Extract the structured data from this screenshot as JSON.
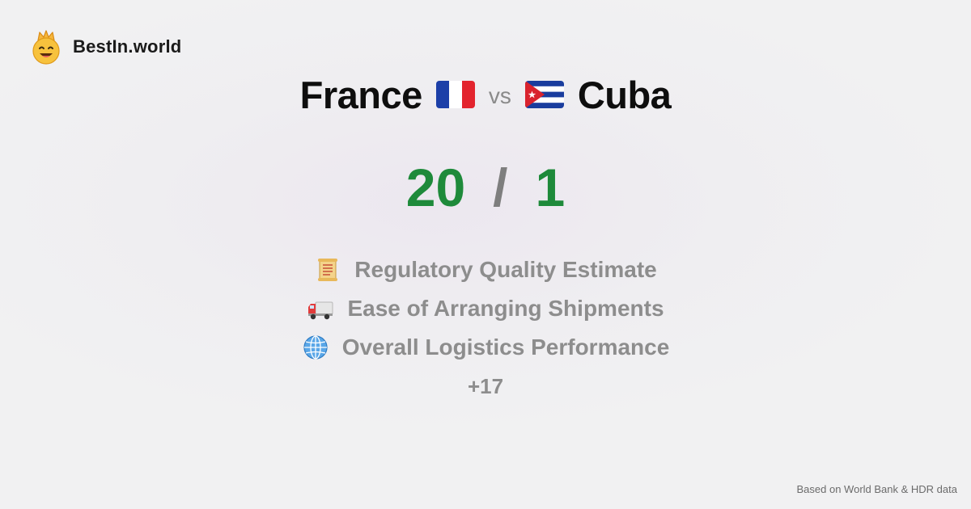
{
  "brand": {
    "name": "BestIn.world",
    "logo_icon": "crowned-smiley-icon"
  },
  "comparison": {
    "left_country": "France",
    "left_flag": "france-flag-icon",
    "separator": "vs",
    "right_country": "Cuba",
    "right_flag": "cuba-flag-icon"
  },
  "score": {
    "left": "20",
    "separator": "/",
    "right": "1",
    "color": "#1e8a3a"
  },
  "metrics": [
    {
      "icon": "scroll-icon",
      "label": "Regulatory Quality Estimate"
    },
    {
      "icon": "delivery-truck-icon",
      "label": "Ease of Arranging Shipments"
    },
    {
      "icon": "globe-icon",
      "label": "Overall Logistics Performance"
    }
  ],
  "more_count": "+17",
  "footer": {
    "source": "Based on World Bank & HDR data"
  }
}
